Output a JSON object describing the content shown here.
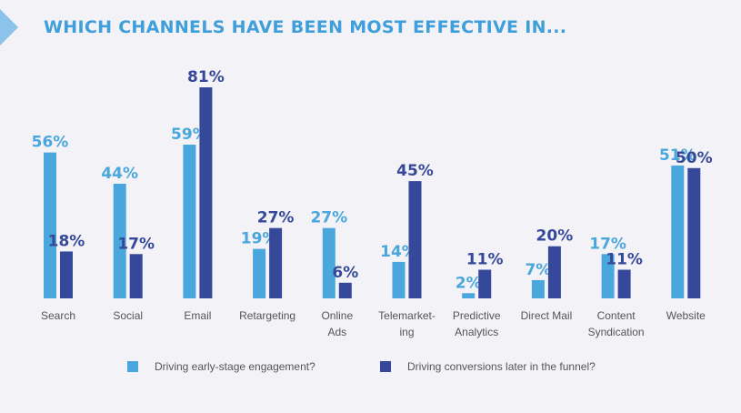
{
  "header": {
    "title": "WHICH CHANNELS HAVE BEEN MOST EFFECTIVE IN..."
  },
  "colors": {
    "early": "#4aa7dd",
    "later": "#35489a",
    "title": "#3f9fdb",
    "background": "#f3f2f6"
  },
  "chart_data": {
    "type": "bar",
    "title": "WHICH CHANNELS HAVE BEEN MOST EFFECTIVE IN...",
    "xlabel": "",
    "ylabel": "",
    "ylim": [
      0,
      81
    ],
    "grid": false,
    "legend_position": "bottom",
    "categories": [
      [
        "Search"
      ],
      [
        "Social"
      ],
      [
        "Email"
      ],
      [
        "Retargeting"
      ],
      [
        "Online",
        "Ads"
      ],
      [
        "Telemarket-",
        "ing"
      ],
      [
        "Predictive",
        "Analytics"
      ],
      [
        "Direct Mail"
      ],
      [
        "Content",
        "Syndication"
      ],
      [
        "Website"
      ]
    ],
    "series": [
      {
        "name": "Driving early-stage engagement?",
        "values": [
          56,
          44,
          59,
          19,
          27,
          14,
          2,
          7,
          17,
          51
        ],
        "labels": [
          "56%",
          "44%",
          "59%",
          "19%",
          "27%",
          "14%",
          "2%",
          "7%",
          "17%",
          "51%"
        ]
      },
      {
        "name": "Driving conversions later in the funnel?",
        "values": [
          18,
          17,
          81,
          27,
          6,
          45,
          11,
          20,
          11,
          50
        ],
        "labels": [
          "18%",
          "17%",
          "81%",
          "27%",
          "6%",
          "45%",
          "11%",
          "20%",
          "11%",
          "50%"
        ]
      }
    ]
  }
}
